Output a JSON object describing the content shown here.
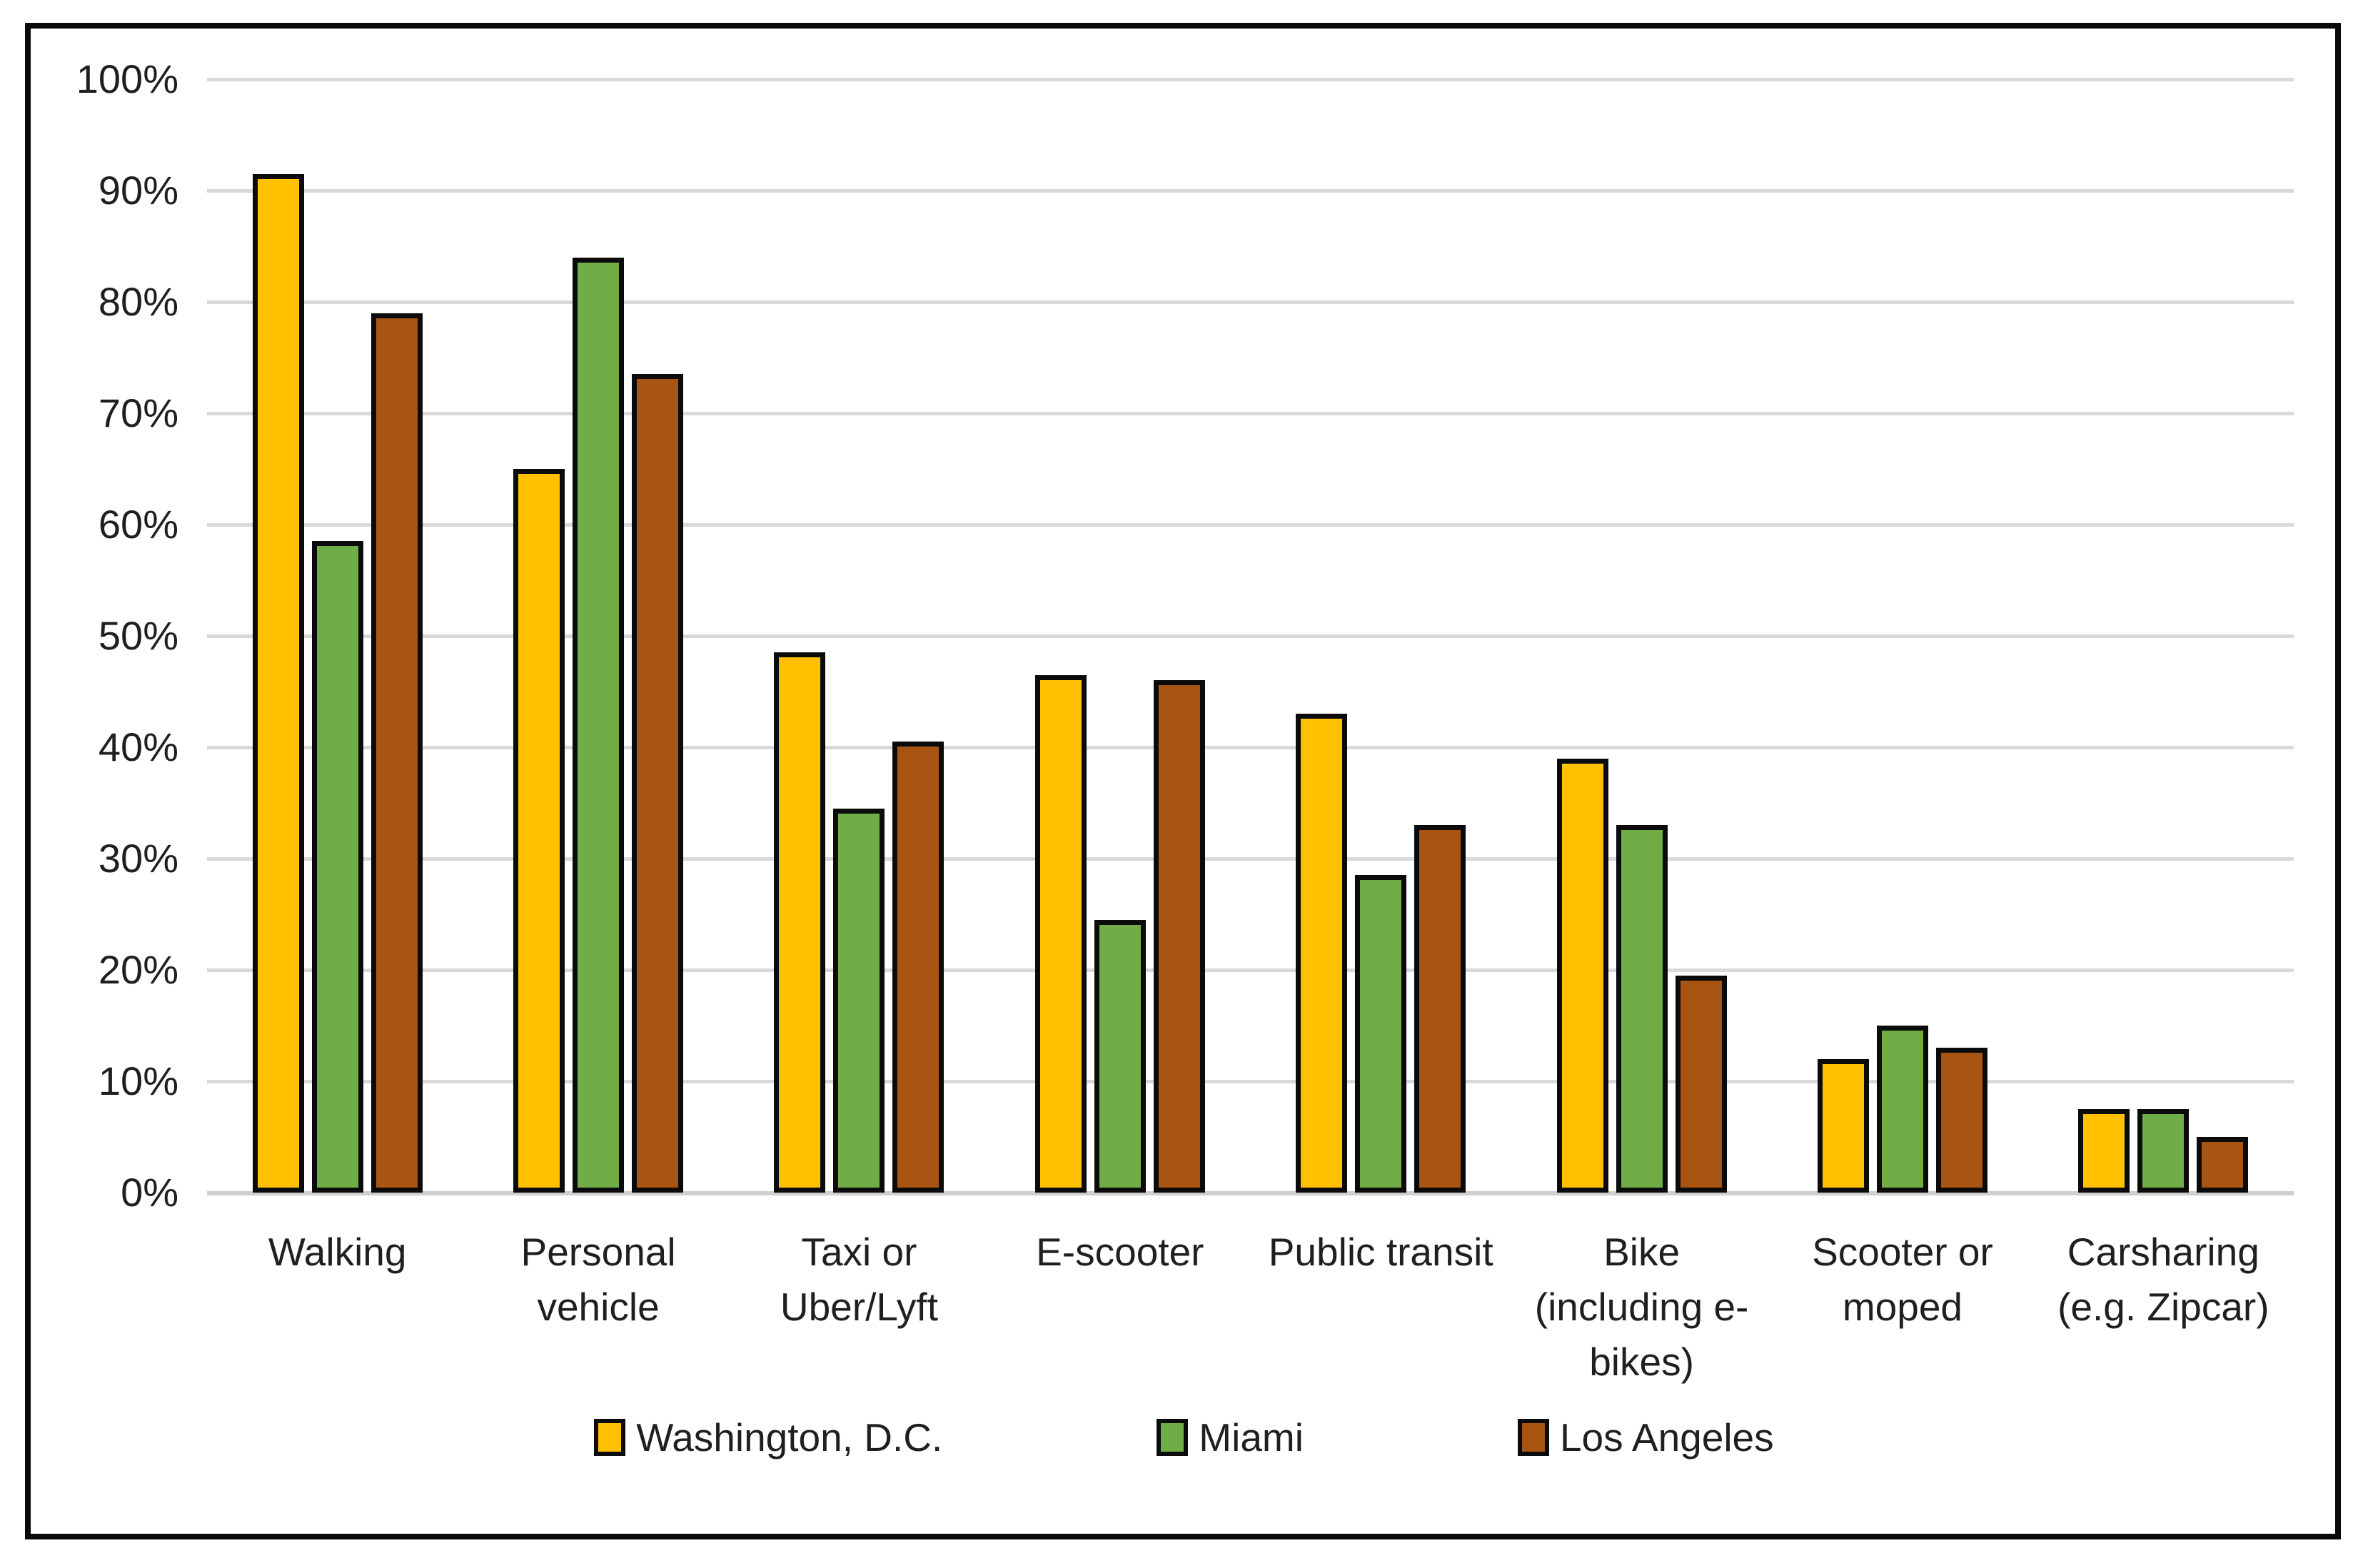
{
  "chart_data": {
    "type": "bar",
    "title": "",
    "xlabel": "",
    "ylabel": "",
    "categories": [
      "Walking",
      "Personal\nvehicle",
      "Taxi or\nUber/Lyft",
      "E-scooter",
      "Public transit",
      "Bike\n(including e-\nbikes)",
      "Scooter or\nmoped",
      "Carsharing\n(e.g. Zipcar)"
    ],
    "series": [
      {
        "name": "Washington, D.C.",
        "color": "#FFC000",
        "values": [
          91.5,
          65,
          48.5,
          46.5,
          43,
          39,
          12,
          7.5
        ]
      },
      {
        "name": "Miami",
        "color": "#70AD47",
        "values": [
          58.5,
          84,
          34.5,
          24.5,
          28.5,
          33,
          15,
          7.5
        ]
      },
      {
        "name": "Los Angeles",
        "color": "#A85413",
        "values": [
          79,
          73.5,
          40.5,
          46,
          33,
          19.5,
          13,
          5
        ]
      }
    ],
    "y_axis": {
      "min": 0,
      "max": 100,
      "step": 10,
      "unit": "percent",
      "tick_labels": [
        "0%",
        "10%",
        "20%",
        "30%",
        "40%",
        "50%",
        "60%",
        "70%",
        "80%",
        "90%",
        "100%"
      ]
    },
    "grid": true,
    "legend_position": "bottom",
    "colors": {
      "gridline": "#D9D9D9",
      "axis_line": "#CFCFCF",
      "bar_border": "#0B0B0B",
      "frame_border": "#0A0A0A",
      "text": "#1F1F1F",
      "background": "#FFFFFF"
    }
  }
}
